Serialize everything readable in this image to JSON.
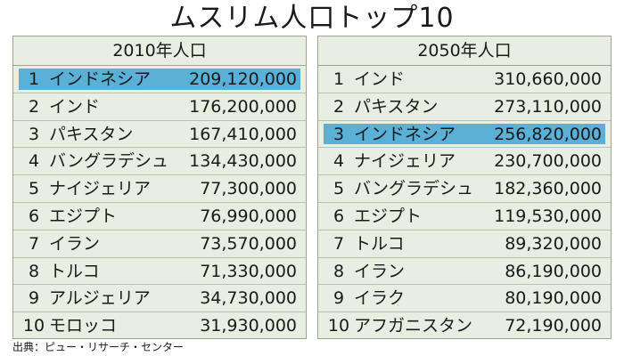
{
  "title": "ムスリム人口トップ10",
  "source": "出典：ピュー・リサーチ・センター",
  "colors": {
    "panel_bg": "#e8eee1",
    "highlight": "#5ab0d6",
    "border": "#9aa58f"
  },
  "chart_data": [
    {
      "type": "table",
      "title": "2010年人口",
      "highlight_rank": 1,
      "rows": [
        {
          "rank": "1",
          "country": "インドネシア",
          "value": "209,120,000"
        },
        {
          "rank": "2",
          "country": "インド",
          "value": "176,200,000"
        },
        {
          "rank": "3",
          "country": "パキスタン",
          "value": "167,410,000"
        },
        {
          "rank": "4",
          "country": "バングラデシュ",
          "value": "134,430,000"
        },
        {
          "rank": "5",
          "country": "ナイジェリア",
          "value": "77,300,000"
        },
        {
          "rank": "6",
          "country": "エジプト",
          "value": "76,990,000"
        },
        {
          "rank": "7",
          "country": "イラン",
          "value": "73,570,000"
        },
        {
          "rank": "8",
          "country": "トルコ",
          "value": "71,330,000"
        },
        {
          "rank": "9",
          "country": "アルジェリア",
          "value": "34,730,000"
        },
        {
          "rank": "10",
          "country": "モロッコ",
          "value": "31,930,000"
        }
      ]
    },
    {
      "type": "table",
      "title": "2050年人口",
      "highlight_rank": 3,
      "rows": [
        {
          "rank": "1",
          "country": "インド",
          "value": "310,660,000"
        },
        {
          "rank": "2",
          "country": "パキスタン",
          "value": "273,110,000"
        },
        {
          "rank": "3",
          "country": "インドネシア",
          "value": "256,820,000"
        },
        {
          "rank": "4",
          "country": "ナイジェリア",
          "value": "230,700,000"
        },
        {
          "rank": "5",
          "country": "バングラデシュ",
          "value": "182,360,000"
        },
        {
          "rank": "6",
          "country": "エジプト",
          "value": "119,530,000"
        },
        {
          "rank": "7",
          "country": "トルコ",
          "value": "89,320,000"
        },
        {
          "rank": "8",
          "country": "イラン",
          "value": "86,190,000"
        },
        {
          "rank": "9",
          "country": "イラク",
          "value": "80,190,000"
        },
        {
          "rank": "10",
          "country": "アフガニスタン",
          "value": "72,190,000"
        }
      ]
    }
  ]
}
